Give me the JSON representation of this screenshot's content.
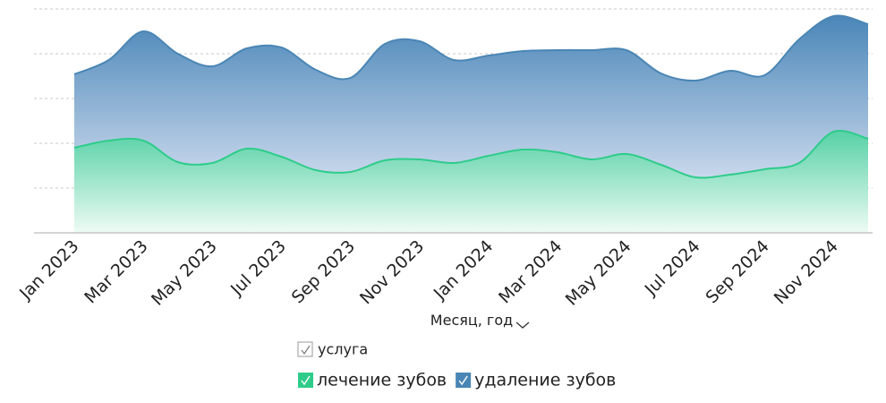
{
  "chart_data": {
    "type": "stacked-area",
    "x_label": "Месяц, год",
    "legend_title": "услуга",
    "categories": [
      "Jan 2023",
      null,
      "Mar 2023",
      null,
      "May 2023",
      null,
      "Jul 2023",
      null,
      "Sep 2023",
      null,
      "Nov 2023",
      null,
      "Jan 2024",
      null,
      "Mar 2024",
      null,
      "May 2024",
      null,
      "Jul 2024",
      null,
      "Sep 2024",
      null,
      "Nov 2024",
      null
    ],
    "series": [
      {
        "name": "лечение зубов",
        "color": "#2ecc8a",
        "values": [
          1.9,
          2.06,
          2.06,
          1.58,
          1.56,
          1.88,
          1.7,
          1.4,
          1.36,
          1.62,
          1.64,
          1.56,
          1.72,
          1.86,
          1.8,
          1.64,
          1.76,
          1.52,
          1.24,
          1.3,
          1.42,
          1.56,
          2.26,
          2.1
        ]
      },
      {
        "name": "удаление зубов",
        "color": "#4a86b5",
        "values": [
          1.64,
          1.8,
          2.44,
          2.42,
          2.16,
          2.24,
          2.44,
          2.24,
          2.1,
          2.6,
          2.64,
          2.3,
          2.24,
          2.2,
          2.28,
          2.44,
          2.32,
          2.04,
          2.16,
          2.32,
          2.1,
          2.76,
          2.58,
          2.56
        ]
      }
    ],
    "ylim": [
      0,
      5
    ],
    "yticks": [
      0,
      1,
      2,
      3,
      4,
      5
    ],
    "grid": true
  }
}
